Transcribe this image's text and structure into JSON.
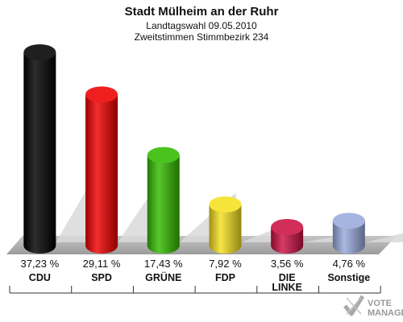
{
  "chart_data": {
    "type": "bar",
    "title": "Stadt Mülheim an der Ruhr",
    "subtitle_1": "Landtagswahl 09.05.2010",
    "subtitle_2": "Zweitstimmen Stimmbezirk 234",
    "categories": [
      "CDU",
      "SPD",
      "GRÜNE",
      "FDP",
      "DIE LINKE",
      "Sonstige"
    ],
    "category_lines": [
      [
        "CDU"
      ],
      [
        "SPD"
      ],
      [
        "GRÜNE"
      ],
      [
        "FDP"
      ],
      [
        "DIE",
        "LINKE"
      ],
      [
        "Sonstige"
      ]
    ],
    "values": [
      37.23,
      29.11,
      17.43,
      7.92,
      3.56,
      4.76
    ],
    "value_labels": [
      "37,23 %",
      "29,11 %",
      "17,43 %",
      "7,92 %",
      "3,56 %",
      "4,76 %"
    ],
    "colors": [
      "#000000",
      "#ee0000",
      "#33bb00",
      "#f5e020",
      "#cc1144",
      "#99aadd"
    ],
    "ylim": [
      0,
      37.23
    ],
    "grid": false,
    "legend": "none"
  },
  "logo": {
    "line1": "VOTE",
    "line2": "MANAGER"
  }
}
